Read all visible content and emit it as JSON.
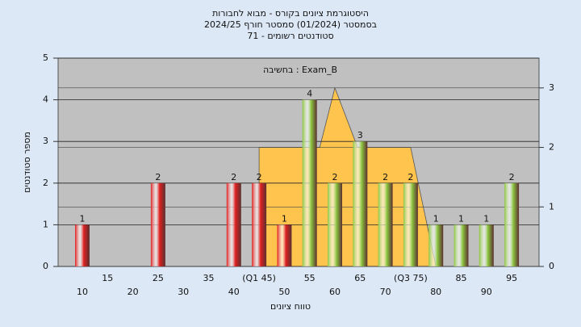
{
  "chart_data": {
    "type": "bar",
    "title_lines": [
      "היסטוגרמת ציונים בקורס - מבוא לחבורות",
      "בסמסטר  (01/2024)  סמסטר חורף 2024/25",
      "סטודנטים רשומים - 71"
    ],
    "annotation": "בחשיבה : Exam_B",
    "x_label": "טווח ציונים",
    "y_label": "מספר סטודנטים",
    "categories": [
      "10",
      "15",
      "20",
      "25",
      "30",
      "35",
      "40",
      "(Q1 45)",
      "50",
      "55",
      "60",
      "65",
      "70",
      "(Q3 75)",
      "80",
      "85",
      "90",
      "95"
    ],
    "values": [
      1,
      0,
      0,
      2,
      0,
      0,
      2,
      2,
      1,
      4,
      2,
      3,
      2,
      2,
      1,
      1,
      1,
      2
    ],
    "colors": [
      "#e02020",
      "#e02020",
      "#e02020",
      "#e02020",
      "#e02020",
      "#e02020",
      "#e02020",
      "#e02020",
      "#e02020",
      "#8cc63f",
      "#8cc63f",
      "#8cc63f",
      "#8cc63f",
      "#8cc63f",
      "#8cc63f",
      "#8cc63f",
      "#8cc63f",
      "#8cc63f"
    ],
    "overlay": {
      "color": "#ffc44d",
      "axis": "y2",
      "x": [
        7,
        7,
        9.4,
        10,
        10.9,
        13,
        14
      ],
      "values": [
        0,
        2,
        2,
        3,
        2,
        2,
        0
      ]
    },
    "ylim": [
      0,
      5
    ],
    "yticks": [
      0,
      1,
      2,
      3,
      4,
      5
    ],
    "y2lim": [
      0,
      3.5
    ],
    "y2ticks": [
      0,
      1,
      2,
      3
    ],
    "grid": true
  }
}
